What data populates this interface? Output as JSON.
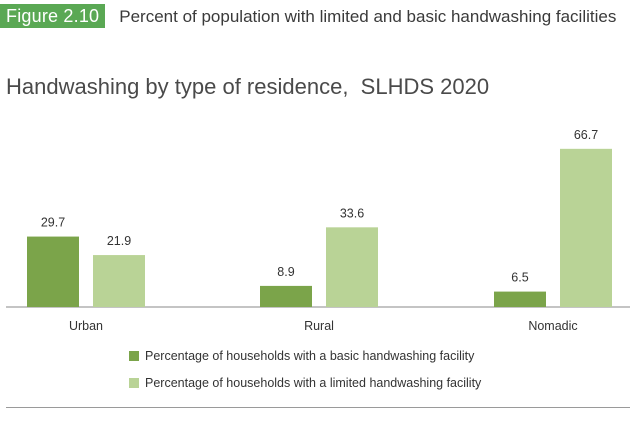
{
  "figure": {
    "label": "Figure 2.10",
    "title": "Percent of population with limited and basic handwashing facilities"
  },
  "chart_data": {
    "type": "bar",
    "title": "Handwashing by type of residence,  SLHDS 2020",
    "categories": [
      "Urban",
      "Rural",
      "Nomadic"
    ],
    "series": [
      {
        "name": "Percentage of households with a basic handwashing facility",
        "values": [
          29.7,
          8.9,
          6.5
        ],
        "color": "#7ba44a"
      },
      {
        "name": "Percentage of households with a limited handwashing facility",
        "values": [
          21.9,
          33.6,
          66.7
        ],
        "color": "#b9d396"
      }
    ],
    "ylim": [
      0,
      70
    ],
    "grid": false,
    "legend_position": "bottom"
  }
}
